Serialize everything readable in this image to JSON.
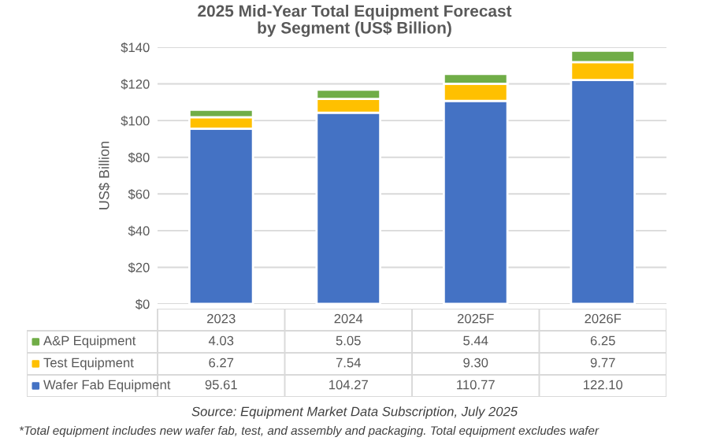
{
  "chart_data": {
    "type": "bar",
    "stacked": true,
    "title": "2025 Mid-Year Total Equipment Forecast\nby Segment (US$ Billion)",
    "ylabel": "US$ Billion",
    "categories": [
      "2023",
      "2024",
      "2025F",
      "2026F"
    ],
    "series": [
      {
        "name": "Wafer Fab Equipment",
        "color": "#4472c4",
        "values": [
          95.61,
          104.27,
          110.77,
          122.1
        ],
        "value_labels": [
          "95.61",
          "104.27",
          "110.77",
          "122.10"
        ]
      },
      {
        "name": "Test Equipment",
        "color": "#ffc000",
        "values": [
          6.27,
          7.54,
          9.3,
          9.77
        ],
        "value_labels": [
          "6.27",
          "7.54",
          "9.30",
          "9.77"
        ]
      },
      {
        "name": "A&P Equipment",
        "color": "#70ad47",
        "values": [
          4.03,
          5.05,
          5.44,
          6.25
        ],
        "value_labels": [
          "4.03",
          "5.05",
          "5.44",
          "6.25"
        ]
      }
    ],
    "ylim": [
      0,
      140
    ],
    "yticks": [
      {
        "value": 0,
        "label": "$0"
      },
      {
        "value": 20,
        "label": "$20"
      },
      {
        "value": 40,
        "label": "$40"
      },
      {
        "value": 60,
        "label": "$60"
      },
      {
        "value": 80,
        "label": "$80"
      },
      {
        "value": 100,
        "label": "$100"
      },
      {
        "value": 120,
        "label": "$120"
      },
      {
        "value": 140,
        "label": "$140"
      }
    ],
    "grid": "y",
    "legend": "bottom",
    "annotations": [
      "Source: Equipment Market Data Subscription, July 2025",
      "*Total equipment includes new wafer fab, test, and assembly and packaging. Total equipment excludes wafer"
    ]
  }
}
